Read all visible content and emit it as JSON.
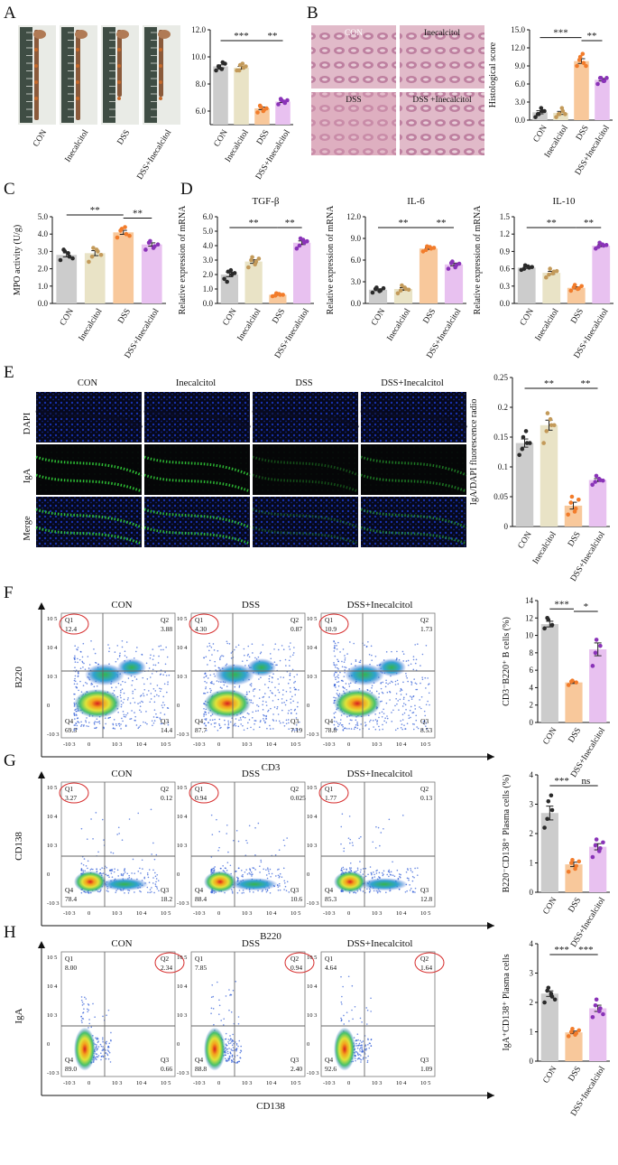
{
  "colors": {
    "CON": "#cccccc",
    "Inecalcitol": "#e9e3c6",
    "DSS": "#f8c89b",
    "DSS+Inecalcitol": "#e8c1f0",
    "dotCON": "#2a2a2a",
    "dotIne": "#c39a5a",
    "dotDSS": "#f27c2b",
    "dotCombo": "#8a33b8"
  },
  "panels": {
    "A": "A",
    "B": "B",
    "C": "C",
    "D": "D",
    "E": "E",
    "F": "F",
    "G": "G",
    "H": "H"
  },
  "photos": {
    "B_labels": [
      "CON",
      "Inecalcitol",
      "DSS",
      "DSS +Inecalcitol"
    ],
    "E_cols": [
      "CON",
      "Inecalcitol",
      "DSS",
      "DSS+Inecalcitol"
    ],
    "E_rows": [
      "DAPI",
      "IgA",
      "Merge"
    ]
  },
  "flow": {
    "F": {
      "cols": [
        "CON",
        "DSS",
        "DSS+Inecalcitol"
      ],
      "ylabel": "B220",
      "xlabel": "CD3",
      "quads": [
        {
          "Q1": "12.4",
          "Q2": "3.88",
          "Q3": "14.4",
          "Q4": "69.3"
        },
        {
          "Q1": "4.30",
          "Q2": "0.87",
          "Q3": "7.19",
          "Q4": "87.7"
        },
        {
          "Q1": "10.9",
          "Q2": "1.73",
          "Q3": "8.53",
          "Q4": "78.8"
        }
      ],
      "circle": "Q1"
    },
    "G": {
      "cols": [
        "CON",
        "DSS",
        "DSS+Inecalcitol"
      ],
      "ylabel": "CD138",
      "xlabel": "B220",
      "quads": [
        {
          "Q1": "3.27",
          "Q2": "0.12",
          "Q3": "18.2",
          "Q4": "78.4"
        },
        {
          "Q1": "0.94",
          "Q2": "0.025",
          "Q3": "10.6",
          "Q4": "88.4"
        },
        {
          "Q1": "1.77",
          "Q2": "0.13",
          "Q3": "12.8",
          "Q4": "85.3"
        }
      ],
      "circle": "Q1"
    },
    "H": {
      "cols": [
        "CON",
        "DSS",
        "DSS+Inecalcitol"
      ],
      "ylabel": "IgA",
      "xlabel": "CD138",
      "quads": [
        {
          "Q1": "8.00",
          "Q2": "2.34",
          "Q3": "0.66",
          "Q4": "89.0"
        },
        {
          "Q1": "7.85",
          "Q2": "0.94",
          "Q3": "2.40",
          "Q4": "88.8"
        },
        {
          "Q1": "4.64",
          "Q2": "1.64",
          "Q3": "1.09",
          "Q4": "92.6"
        }
      ],
      "circle": "Q2"
    },
    "ticks": [
      "-10 3",
      "0",
      "10 3",
      "10 4",
      "10 5"
    ],
    "yticks": [
      "10 5",
      "10 4",
      "10 3",
      "0",
      "-10 3"
    ],
    "quadNames": [
      "Q1",
      "Q2",
      "Q3",
      "Q4"
    ]
  },
  "chart_data": [
    {
      "id": "A",
      "type": "bar",
      "categories": [
        "CON",
        "Inecalcitol",
        "DSS",
        "DSS+Inecalcitol"
      ],
      "values": [
        9.3,
        9.2,
        6.2,
        6.7
      ],
      "ylabel": "Colon length (cm)",
      "ylim": [
        5.0,
        12.0
      ],
      "yticks": [
        "6.0",
        "8.0",
        "10.0",
        "12.0"
      ],
      "points": [
        [
          9.0,
          9.2,
          9.6,
          9.3,
          9.1,
          9.5
        ],
        [
          9.0,
          9.4,
          9.2,
          9.0,
          9.5,
          9.3
        ],
        [
          5.9,
          6.3,
          6.1,
          6.4,
          6.0,
          6.2
        ],
        [
          6.5,
          6.8,
          6.6,
          6.9,
          6.7,
          6.8
        ]
      ],
      "sig": [
        {
          "from": 0,
          "to": 2,
          "label": "***"
        },
        {
          "from": 2,
          "to": 3,
          "label": "**"
        }
      ]
    },
    {
      "id": "B",
      "type": "bar",
      "categories": [
        "CON",
        "Inecalcitol",
        "DSS",
        "DSS+Inecalcitol"
      ],
      "values": [
        1.3,
        1.2,
        9.8,
        6.7
      ],
      "ylabel": "Histological score",
      "ylim": [
        0,
        15
      ],
      "yticks": [
        "0.0",
        "3.0",
        "6.0",
        "9.0",
        "12.0",
        "15.0"
      ],
      "points": [
        [
          0.5,
          1.0,
          1.5,
          1.0,
          2.0,
          1.5
        ],
        [
          0.5,
          1.0,
          1.5,
          1.0,
          2.0,
          1.0
        ],
        [
          9.0,
          10.5,
          9.5,
          10.0,
          11.0,
          9.0
        ],
        [
          6.0,
          7.0,
          6.5,
          7.0,
          6.5,
          7.0
        ]
      ],
      "sig": [
        {
          "from": 0,
          "to": 2,
          "label": "***"
        },
        {
          "from": 2,
          "to": 3,
          "label": "**"
        }
      ]
    },
    {
      "id": "C",
      "type": "bar",
      "categories": [
        "CON",
        "Inecalcitol",
        "DSS",
        "DSS+Inecalcitol"
      ],
      "values": [
        2.8,
        2.9,
        4.1,
        3.4
      ],
      "ylabel": "MPO activity (U/g)",
      "ylim": [
        0,
        5.0
      ],
      "yticks": [
        "0.0",
        "1.0",
        "2.0",
        "3.0",
        "4.0",
        "5.0"
      ],
      "points": [
        [
          2.5,
          3.0,
          2.7,
          3.1,
          2.9,
          2.6
        ],
        [
          2.4,
          3.2,
          3.0,
          2.7,
          3.1,
          2.8
        ],
        [
          3.8,
          4.3,
          4.0,
          4.2,
          4.4,
          3.9
        ],
        [
          3.1,
          3.6,
          3.3,
          3.5,
          3.2,
          3.4
        ]
      ],
      "sig": [
        {
          "from": 0,
          "to": 2,
          "label": "**"
        },
        {
          "from": 2,
          "to": 3,
          "label": "**"
        }
      ]
    },
    {
      "id": "D1",
      "type": "bar",
      "title": "TGF-β",
      "categories": [
        "CON",
        "Inecalcitol",
        "DSS",
        "DSS+Inecalcitol"
      ],
      "values": [
        2.0,
        2.9,
        0.6,
        4.2
      ],
      "ylabel": "Relative expression of mRNA",
      "ylim": [
        0,
        6.0
      ],
      "yticks": [
        "0.0",
        "1.0",
        "2.0",
        "3.0",
        "4.0",
        "5.0",
        "6.0"
      ],
      "points": [
        [
          1.7,
          2.2,
          2.0,
          1.5,
          2.3,
          2.1
        ],
        [
          2.5,
          3.2,
          2.9,
          3.0,
          2.7,
          3.1
        ],
        [
          0.5,
          0.7,
          0.6,
          0.55,
          0.65,
          0.6
        ],
        [
          3.8,
          4.5,
          4.2,
          4.0,
          4.4,
          4.3
        ]
      ],
      "sig": [
        {
          "from": 0,
          "to": 2,
          "label": "**"
        },
        {
          "from": 2,
          "to": 3,
          "label": "**"
        }
      ]
    },
    {
      "id": "D2",
      "type": "bar",
      "title": "IL-6",
      "categories": [
        "CON",
        "Inecalcitol",
        "DSS",
        "DSS+Inecalcitol"
      ],
      "values": [
        1.9,
        2.0,
        7.6,
        5.4
      ],
      "ylabel": "Relative expression of mRNA",
      "ylim": [
        0,
        12.0
      ],
      "yticks": [
        "0.0",
        "3.0",
        "6.0",
        "9.0",
        "12.0"
      ],
      "points": [
        [
          1.5,
          2.2,
          1.8,
          2.0,
          1.7,
          2.1
        ],
        [
          1.4,
          2.5,
          2.0,
          1.8,
          2.2,
          1.9
        ],
        [
          7.2,
          7.9,
          7.6,
          7.4,
          7.8,
          7.7
        ],
        [
          4.8,
          5.8,
          5.3,
          5.6,
          5.0,
          5.5
        ]
      ],
      "sig": [
        {
          "from": 0,
          "to": 2,
          "label": "**"
        },
        {
          "from": 2,
          "to": 3,
          "label": "**"
        }
      ]
    },
    {
      "id": "D3",
      "type": "bar",
      "title": "IL-10",
      "categories": [
        "CON",
        "Inecalcitol",
        "DSS",
        "DSS+Inecalcitol"
      ],
      "values": [
        0.62,
        0.53,
        0.27,
        1.0
      ],
      "ylabel": "Relative expression of mRNA",
      "ylim": [
        0,
        1.5
      ],
      "yticks": [
        "0.0",
        "0.3",
        "0.6",
        "0.9",
        "1.2",
        "1.5"
      ],
      "points": [
        [
          0.58,
          0.66,
          0.62,
          0.6,
          0.64,
          0.63
        ],
        [
          0.45,
          0.6,
          0.55,
          0.5,
          0.52,
          0.56
        ],
        [
          0.22,
          0.32,
          0.26,
          0.28,
          0.25,
          0.3
        ],
        [
          0.95,
          1.05,
          1.0,
          0.98,
          1.02,
          1.01
        ]
      ],
      "sig": [
        {
          "from": 0,
          "to": 2,
          "label": "**"
        },
        {
          "from": 2,
          "to": 3,
          "label": "**"
        }
      ]
    },
    {
      "id": "E",
      "type": "bar",
      "categories": [
        "CON",
        "Inecalcitol",
        "DSS",
        "DSS+Inecalcitol"
      ],
      "values": [
        0.14,
        0.17,
        0.035,
        0.078
      ],
      "ylabel": "IgA/DAPI fluorescence radio",
      "ylim": [
        0,
        0.25
      ],
      "yticks": [
        "0",
        "0.05",
        "0.1",
        "0.15",
        "0.2",
        "0.25"
      ],
      "points": [
        [
          0.12,
          0.15,
          0.14,
          0.13,
          0.16,
          0.14
        ],
        [
          0.14,
          0.19,
          0.17,
          0.16,
          0.18,
          0.17
        ],
        [
          0.02,
          0.05,
          0.03,
          0.04,
          0.025,
          0.045
        ],
        [
          0.07,
          0.085,
          0.078,
          0.075,
          0.08,
          0.077
        ]
      ],
      "sig": [
        {
          "from": 0,
          "to": 2,
          "label": "**"
        },
        {
          "from": 2,
          "to": 3,
          "label": "**"
        }
      ]
    },
    {
      "id": "F",
      "type": "bar",
      "categories": [
        "CON",
        "DSS",
        "DSS+Inecalcitol"
      ],
      "values": [
        11.3,
        4.6,
        8.4
      ],
      "ylabel": "CD3⁻B220⁺ B cells (%)",
      "ylim": [
        0,
        14
      ],
      "yticks": [
        "0",
        "2",
        "4",
        "6",
        "8",
        "10",
        "12",
        "14"
      ],
      "points": [
        [
          10.8,
          11.8,
          11.2,
          12.0
        ],
        [
          4.3,
          4.8,
          4.6,
          4.7
        ],
        [
          6.5,
          9.5,
          8.8,
          8.0
        ]
      ],
      "sig": [
        {
          "from": 0,
          "to": 1,
          "label": "***"
        },
        {
          "from": 1,
          "to": 2,
          "label": "*"
        }
      ]
    },
    {
      "id": "G",
      "type": "bar",
      "categories": [
        "CON",
        "DSS",
        "DSS+Inecalcitol"
      ],
      "values": [
        2.7,
        0.95,
        1.55
      ],
      "ylabel": "B220⁻CD138⁺ Plasma cells (%)",
      "ylim": [
        0,
        4
      ],
      "yticks": [
        "0",
        "1",
        "2",
        "3",
        "4"
      ],
      "points": [
        [
          2.2,
          3.1,
          2.8,
          2.5,
          3.3
        ],
        [
          0.7,
          1.1,
          0.9,
          1.0,
          0.8,
          1.05
        ],
        [
          1.2,
          1.8,
          1.5,
          1.6,
          1.4,
          1.7
        ]
      ],
      "sig": [
        {
          "from": 0,
          "to": 1,
          "label": "***"
        },
        {
          "from": 1,
          "to": 2,
          "label": "ns"
        }
      ]
    },
    {
      "id": "H",
      "type": "bar",
      "categories": [
        "CON",
        "DSS",
        "DSS+Inecalcitol"
      ],
      "values": [
        2.3,
        0.98,
        1.8
      ],
      "ylabel": "IgA⁺CD138⁺ Plasma cells",
      "ylim": [
        0,
        4
      ],
      "yticks": [
        "0",
        "1",
        "2",
        "3",
        "4"
      ],
      "points": [
        [
          2.0,
          2.5,
          2.2,
          2.4,
          2.3,
          2.1
        ],
        [
          0.85,
          1.1,
          0.95,
          1.0,
          0.9,
          1.05
        ],
        [
          1.5,
          2.1,
          1.8,
          1.9,
          1.7,
          1.6
        ]
      ],
      "sig": [
        {
          "from": 0,
          "to": 1,
          "label": "***"
        },
        {
          "from": 1,
          "to": 2,
          "label": "***"
        }
      ]
    }
  ]
}
